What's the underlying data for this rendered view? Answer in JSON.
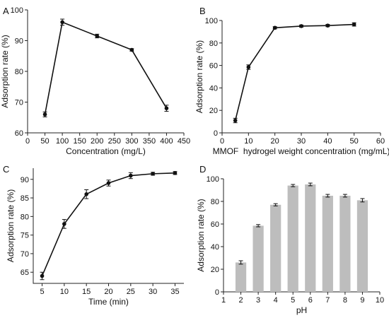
{
  "chart_data": [
    {
      "panel": "A",
      "type": "line",
      "xlabel": "Concentration (mg/L)",
      "ylabel": "Adsorption rate (%)",
      "xlim": [
        0,
        450
      ],
      "ylim": [
        60,
        100
      ],
      "xticks": [
        0,
        50,
        100,
        150,
        200,
        250,
        300,
        350,
        400,
        450
      ],
      "yticks": [
        60,
        70,
        80,
        90,
        100
      ],
      "x": [
        50,
        100,
        200,
        300,
        400
      ],
      "y": [
        66,
        96,
        91.5,
        87,
        68
      ],
      "err": [
        0.8,
        1.0,
        0.6,
        0.4,
        1.0
      ],
      "marker": "filled-circle"
    },
    {
      "panel": "B",
      "type": "line",
      "xlabel": "MMOF  hydrogel weight concentration (mg/mL)",
      "ylabel": "Adsorption rate (%)",
      "xlim": [
        0,
        60
      ],
      "ylim": [
        0,
        100
      ],
      "xticks": [
        0,
        10,
        20,
        30,
        40,
        50,
        60
      ],
      "yticks": [
        0,
        20,
        40,
        60,
        80,
        100
      ],
      "x": [
        5,
        10,
        20,
        30,
        40,
        50
      ],
      "y": [
        11,
        58.5,
        93.5,
        95,
        95.5,
        96.5
      ],
      "err": [
        2,
        2,
        1,
        1,
        1,
        1.5
      ],
      "marker": "filled-circle"
    },
    {
      "panel": "C",
      "type": "line",
      "xlabel": "Time (min)",
      "ylabel": "Adsorption rate (%)",
      "xlim": [
        3,
        37
      ],
      "ylim": [
        62,
        93
      ],
      "xticks": [
        5,
        10,
        15,
        20,
        25,
        30,
        35
      ],
      "yticks": [
        65,
        70,
        75,
        80,
        85,
        90
      ],
      "x": [
        5,
        10,
        15,
        20,
        25,
        30,
        35
      ],
      "y": [
        64,
        78,
        86,
        89,
        91,
        91.5,
        91.7
      ],
      "err": [
        1,
        1.2,
        1.2,
        0.8,
        0.8,
        0.4,
        0.4
      ],
      "marker": "filled-circle"
    },
    {
      "panel": "D",
      "type": "bar",
      "xlabel": "pH",
      "ylabel": "Adsorption rate (%)",
      "xlim": [
        1,
        10
      ],
      "ylim": [
        0,
        100
      ],
      "xticks": [
        1,
        2,
        3,
        4,
        5,
        6,
        7,
        8,
        9,
        10
      ],
      "yticks": [
        0,
        20,
        40,
        60,
        80,
        100
      ],
      "x": [
        2,
        3,
        4,
        5,
        6,
        7,
        8,
        9
      ],
      "y": [
        26,
        58.5,
        77,
        94,
        95,
        85,
        85,
        81
      ],
      "err": [
        1.5,
        1,
        1,
        1,
        1.2,
        1.2,
        1.2,
        1.5
      ],
      "color": "#bdbdbd"
    }
  ]
}
